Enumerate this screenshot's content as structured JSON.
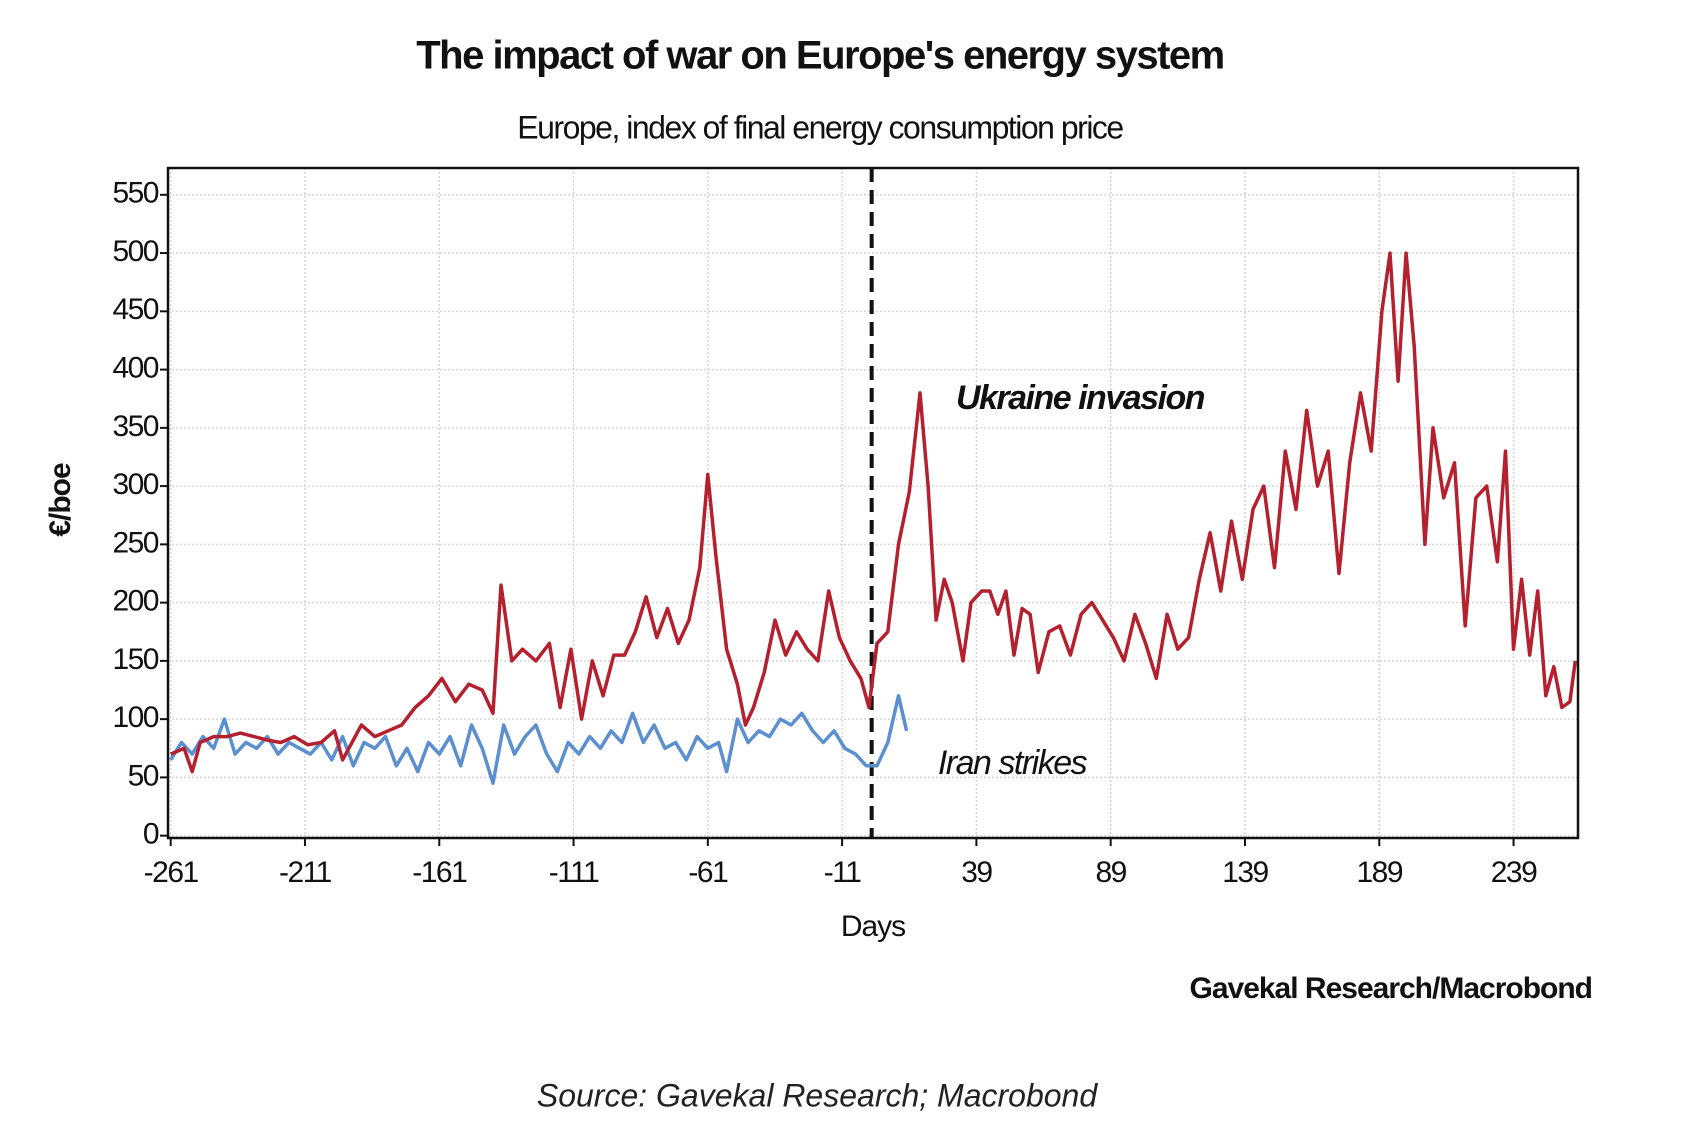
{
  "chart_data": {
    "type": "line",
    "title": "The impact of war on Europe's energy system",
    "subtitle": "Europe, index of final energy consumption price",
    "y_label": "€/boe",
    "x_label": "Days",
    "credit": "Gavekal Research/Macrobond",
    "source": "Source: Gavekal Research; Macrobond",
    "xlim": [
      -262,
      263
    ],
    "ylim": [
      -2,
      573
    ],
    "xticks": [
      -261,
      -211,
      -161,
      -111,
      -61,
      -11,
      39,
      89,
      139,
      189,
      239
    ],
    "yticks": [
      0,
      50,
      100,
      150,
      200,
      250,
      300,
      350,
      400,
      450,
      500,
      550
    ],
    "grid": true,
    "marker_x": 0,
    "annotations": [
      "Ukraine invasion",
      "Iran strikes"
    ],
    "series": [
      {
        "name": "Ukraine invasion",
        "color": "#b5202e",
        "x": [
          -261,
          -256,
          -253,
          -250,
          -245,
          -240,
          -235,
          -230,
          -225,
          -220,
          -215,
          -210,
          -205,
          -200,
          -197,
          -190,
          -185,
          -180,
          -175,
          -170,
          -165,
          -160,
          -155,
          -150,
          -145,
          -141,
          -138,
          -134,
          -130,
          -125,
          -120,
          -116,
          -112,
          -108,
          -104,
          -100,
          -96,
          -92,
          -88,
          -84,
          -80,
          -76,
          -72,
          -68,
          -64,
          -61,
          -58,
          -54,
          -50,
          -47,
          -44,
          -40,
          -36,
          -32,
          -28,
          -24,
          -20,
          -16,
          -12,
          -8,
          -4,
          -1,
          2,
          6,
          10,
          14,
          18,
          21,
          24,
          27,
          30,
          34,
          37,
          41,
          44,
          47,
          50,
          53,
          56,
          59,
          62,
          66,
          70,
          74,
          78,
          82,
          86,
          90,
          94,
          98,
          102,
          106,
          110,
          114,
          118,
          122,
          126,
          130,
          134,
          138,
          142,
          146,
          150,
          154,
          158,
          162,
          166,
          170,
          174,
          178,
          182,
          186,
          190,
          193,
          196,
          199,
          202,
          206,
          209,
          213,
          217,
          221,
          225,
          229,
          233,
          236,
          239,
          242,
          245,
          248,
          251,
          254,
          257,
          260,
          262
        ],
        "values": [
          70,
          75,
          55,
          80,
          85,
          85,
          88,
          85,
          82,
          80,
          85,
          78,
          80,
          90,
          65,
          95,
          85,
          90,
          95,
          110,
          120,
          135,
          115,
          130,
          125,
          105,
          215,
          150,
          160,
          150,
          165,
          110,
          160,
          100,
          150,
          120,
          155,
          155,
          175,
          205,
          170,
          195,
          165,
          185,
          230,
          310,
          240,
          160,
          130,
          95,
          110,
          140,
          185,
          155,
          175,
          160,
          150,
          210,
          170,
          150,
          135,
          110,
          165,
          175,
          250,
          295,
          380,
          300,
          185,
          220,
          200,
          150,
          200,
          210,
          210,
          190,
          210,
          155,
          195,
          190,
          140,
          175,
          180,
          155,
          190,
          200,
          185,
          170,
          150,
          190,
          165,
          135,
          190,
          160,
          170,
          220,
          260,
          210,
          270,
          220,
          280,
          300,
          230,
          330,
          280,
          365,
          300,
          330,
          225,
          320,
          380,
          330,
          450,
          500,
          390,
          500,
          420,
          250,
          350,
          290,
          320,
          180,
          290,
          300,
          235,
          330,
          160,
          220,
          155,
          210,
          120,
          145,
          110,
          115,
          150
        ]
      },
      {
        "name": "Iran strikes",
        "color": "#5b8fd0",
        "x": [
          -261,
          -257,
          -253,
          -249,
          -245,
          -241,
          -237,
          -233,
          -229,
          -225,
          -221,
          -217,
          -213,
          -209,
          -205,
          -201,
          -197,
          -193,
          -189,
          -185,
          -181,
          -177,
          -173,
          -169,
          -165,
          -161,
          -157,
          -153,
          -149,
          -145,
          -141,
          -137,
          -133,
          -129,
          -125,
          -121,
          -117,
          -113,
          -109,
          -105,
          -101,
          -97,
          -93,
          -89,
          -85,
          -81,
          -77,
          -73,
          -69,
          -65,
          -61,
          -57,
          -54,
          -50,
          -46,
          -42,
          -38,
          -34,
          -30,
          -26,
          -22,
          -18,
          -14,
          -10,
          -6,
          -2,
          2,
          6,
          10,
          13
        ],
        "values": [
          65,
          80,
          70,
          85,
          75,
          100,
          70,
          80,
          75,
          85,
          70,
          80,
          75,
          70,
          80,
          65,
          85,
          60,
          80,
          75,
          85,
          60,
          75,
          55,
          80,
          70,
          85,
          60,
          95,
          75,
          45,
          95,
          70,
          85,
          95,
          70,
          55,
          80,
          70,
          85,
          75,
          90,
          80,
          105,
          80,
          95,
          75,
          80,
          65,
          85,
          75,
          80,
          55,
          100,
          80,
          90,
          85,
          100,
          95,
          105,
          90,
          80,
          90,
          75,
          70,
          60,
          60,
          80,
          120,
          90
        ]
      }
    ]
  }
}
